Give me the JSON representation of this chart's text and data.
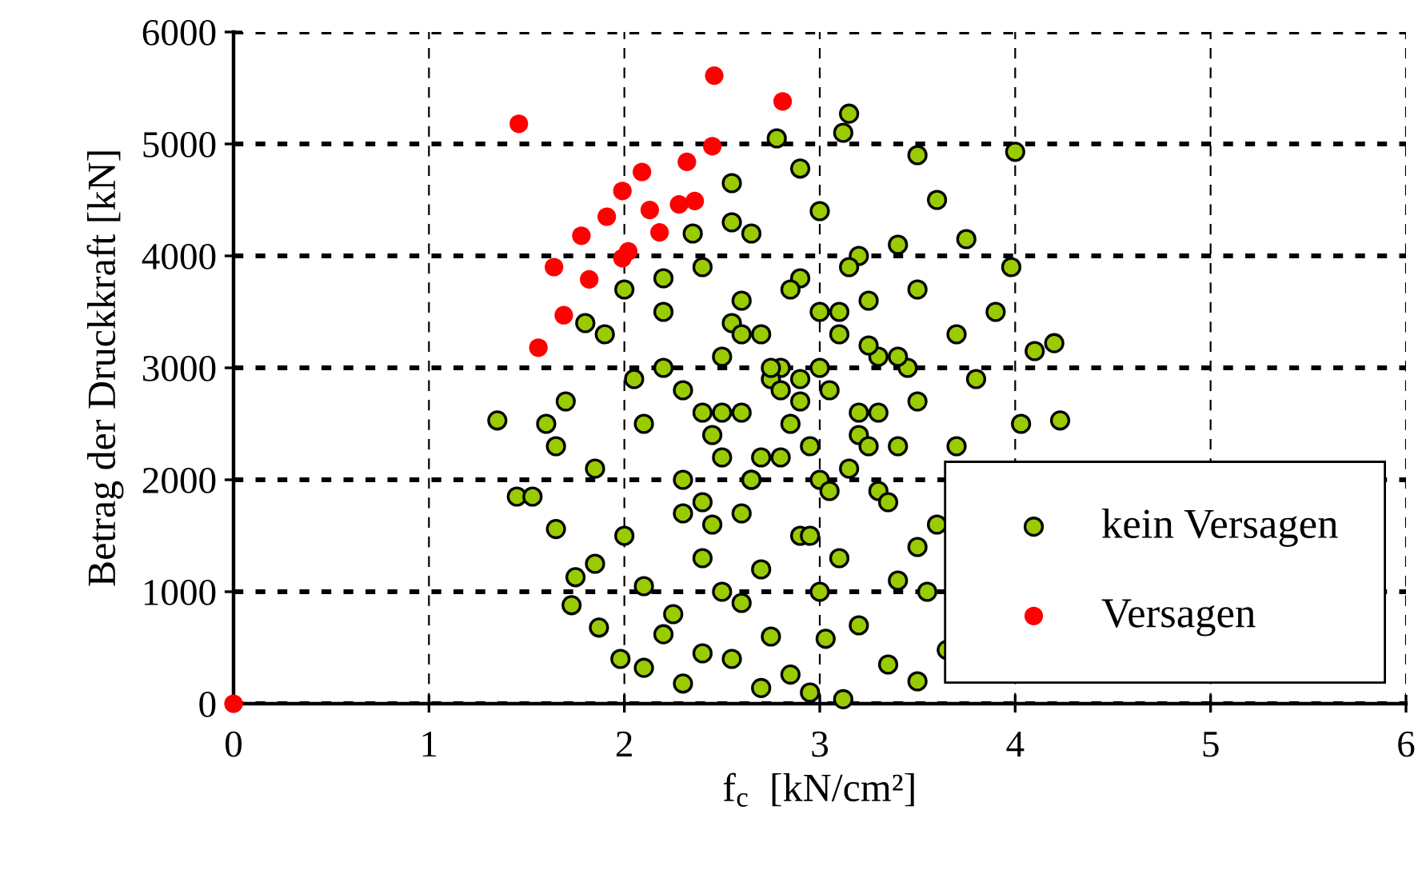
{
  "chart_data": {
    "type": "scatter",
    "xlabel": "f$_{c}$  [kN/cm²]",
    "ylabel": "Betrag der Druckkraft [kN]",
    "xlim": [
      0,
      6
    ],
    "ylim": [
      0,
      6000
    ],
    "xticks": [
      0,
      1,
      2,
      3,
      4,
      5,
      6
    ],
    "yticks": [
      0,
      1000,
      2000,
      3000,
      4000,
      5000,
      6000
    ],
    "grid": true,
    "legend": "bottom right",
    "marker": "circle",
    "series": [
      {
        "name": "kein Versagen",
        "color": "#99cc00",
        "x": [
          1.35,
          1.45,
          1.53,
          1.6,
          1.65,
          1.7,
          1.75,
          1.73,
          1.8,
          1.65,
          1.85,
          1.87,
          1.98,
          2.1,
          2.2,
          2.3,
          2.4,
          2.55,
          2.7,
          2.85,
          2.95,
          3.03,
          3.12,
          3.35,
          3.5,
          3.65,
          3.55,
          4.03,
          4.23,
          4.1,
          4.2,
          3.98,
          4.0,
          3.5,
          3.15,
          3.12,
          2.78,
          2.9,
          2.55,
          3.6,
          3.75,
          3.9,
          3.8,
          2.65,
          2.0,
          1.9,
          2.05,
          1.85,
          2.0,
          2.1,
          2.25,
          2.6,
          3.2,
          3.4,
          3.6,
          3.7,
          3.7,
          3.4,
          3.0,
          2.4,
          2.2,
          2.3,
          2.4,
          2.6,
          2.8,
          3.0,
          3.2,
          3.3,
          2.9,
          2.7,
          2.6,
          2.5,
          3.1,
          3.3,
          2.5,
          2.9,
          2.7,
          3.1,
          3.5,
          2.2,
          2.9,
          2.8,
          3.0,
          2.4,
          3.4,
          2.6,
          3.2,
          2.5,
          3.0,
          2.75,
          3.25,
          2.35,
          3.5,
          3.5,
          2.1,
          2.3,
          2.45,
          2.55,
          2.65,
          2.75,
          2.85,
          2.95,
          3.05,
          3.15,
          3.25,
          3.35,
          3.45,
          2.2,
          2.4,
          2.6,
          2.8,
          3.0,
          3.2,
          3.4,
          2.3,
          2.5,
          2.7,
          2.9,
          3.1,
          3.3,
          2.45,
          2.65,
          2.85,
          3.05,
          3.25,
          2.75,
          2.95,
          2.55,
          3.15
        ],
        "values": [
          2530,
          1850,
          1850,
          2500,
          2300,
          2700,
          1130,
          880,
          3400,
          1560,
          1250,
          680,
          400,
          320,
          620,
          180,
          450,
          400,
          140,
          260,
          100,
          580,
          40,
          350,
          200,
          480,
          1000,
          2500,
          2530,
          3150,
          3220,
          3900,
          4930,
          4900,
          5270,
          5100,
          5050,
          4780,
          4650,
          4500,
          4150,
          3500,
          2900,
          4200,
          3700,
          3300,
          2900,
          2100,
          1500,
          1050,
          800,
          900,
          700,
          1100,
          1600,
          2300,
          3300,
          4100,
          4400,
          3900,
          3000,
          2000,
          1300,
          1700,
          2200,
          3000,
          2600,
          1900,
          1500,
          3300,
          2600,
          3100,
          3500,
          3100,
          2200,
          3800,
          1200,
          1300,
          2700,
          3500,
          2700,
          3000,
          2000,
          2600,
          2300,
          3600,
          4000,
          1000,
          1000,
          600,
          3600,
          4200,
          3700,
          1400,
          2500,
          2800,
          2400,
          3400,
          2000,
          2900,
          2500,
          2300,
          2800,
          2100,
          3200,
          1800,
          3000,
          3800,
          1800,
          3300,
          2800,
          3500,
          2400,
          3100,
          1700,
          2600,
          2200,
          2900,
          3300,
          2600,
          1600,
          2000,
          3700,
          1900,
          2300,
          3000,
          1500,
          4300,
          3900
        ]
      },
      {
        "name": "Versagen",
        "color": "#ff0000",
        "x": [
          0,
          1.46,
          2.46,
          2.81,
          2.45,
          2.32,
          2.09,
          1.99,
          1.91,
          2.13,
          2.28,
          2.36,
          1.78,
          2.18,
          2.02,
          1.99,
          1.64,
          1.82,
          1.69,
          1.56
        ],
        "values": [
          0,
          5180,
          5610,
          5380,
          4980,
          4840,
          4750,
          4580,
          4350,
          4410,
          4460,
          4490,
          4180,
          4210,
          4040,
          3980,
          3900,
          3790,
          3470,
          3180
        ]
      }
    ]
  }
}
